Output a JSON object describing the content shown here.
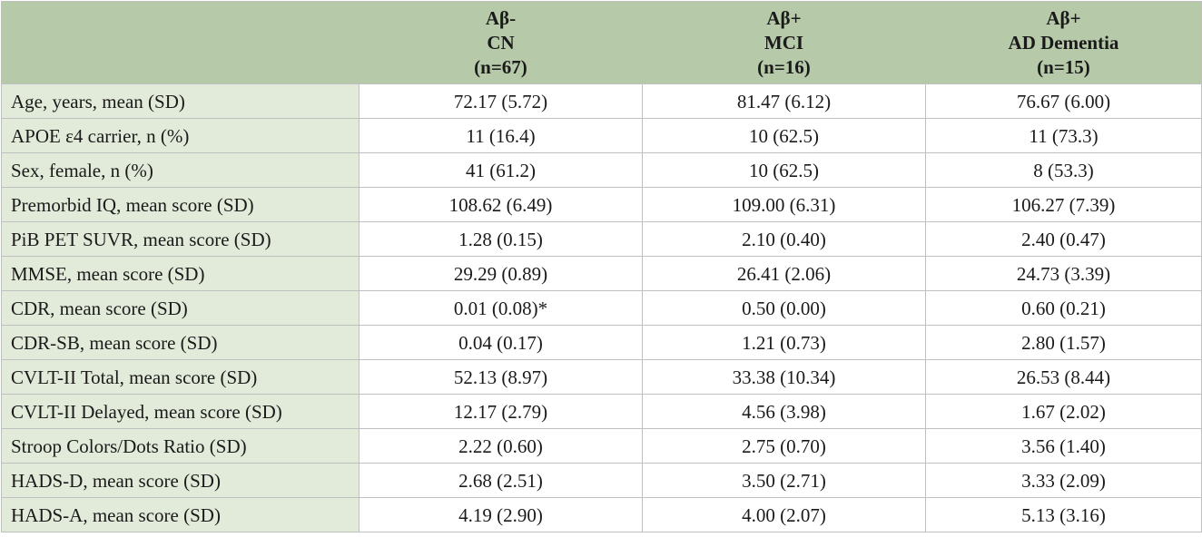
{
  "header": {
    "row_header": "",
    "columns": [
      {
        "line1": "Aβ-",
        "line2": "CN",
        "line3": "(n=67)"
      },
      {
        "line1": "Aβ+",
        "line2": "MCI",
        "line3": "(n=16)"
      },
      {
        "line1": "Aβ+",
        "line2": "AD Dementia",
        "line3": "(n=15)"
      }
    ]
  },
  "rows": [
    {
      "label": "Age, years, mean (SD)",
      "values": [
        "72.17 (5.72)",
        "81.47 (6.12)",
        "76.67 (6.00)"
      ]
    },
    {
      "label": "APOE ε4 carrier, n (%)",
      "values": [
        "11 (16.4)",
        "10 (62.5)",
        "11 (73.3)"
      ]
    },
    {
      "label": "Sex, female, n (%)",
      "values": [
        "41 (61.2)",
        "10 (62.5)",
        "8 (53.3)"
      ]
    },
    {
      "label": "Premorbid IQ, mean score (SD)",
      "values": [
        "108.62 (6.49)",
        "109.00 (6.31)",
        "106.27 (7.39)"
      ]
    },
    {
      "label": "PiB PET SUVR, mean score (SD)",
      "values": [
        "1.28 (0.15)",
        "2.10 (0.40)",
        "2.40 (0.47)"
      ]
    },
    {
      "label": "MMSE, mean score (SD)",
      "values": [
        "29.29 (0.89)",
        "26.41 (2.06)",
        "24.73 (3.39)"
      ]
    },
    {
      "label": "CDR, mean score (SD)",
      "values": [
        "0.01 (0.08)*",
        "0.50 (0.00)",
        "0.60 (0.21)"
      ]
    },
    {
      "label": "CDR-SB, mean score (SD)",
      "values": [
        "0.04 (0.17)",
        "1.21 (0.73)",
        "2.80 (1.57)"
      ]
    },
    {
      "label": "CVLT-II Total, mean score (SD)",
      "values": [
        "52.13 (8.97)",
        "33.38 (10.34)",
        "26.53 (8.44)"
      ]
    },
    {
      "label": "CVLT-II Delayed, mean score (SD)",
      "values": [
        "12.17 (2.79)",
        "4.56 (3.98)",
        "1.67 (2.02)"
      ]
    },
    {
      "label": "Stroop Colors/Dots Ratio (SD)",
      "values": [
        "2.22 (0.60)",
        "2.75 (0.70)",
        "3.56 (1.40)"
      ]
    },
    {
      "label": "HADS-D, mean score (SD)",
      "values": [
        "2.68 (2.51)",
        "3.50 (2.71)",
        "3.33 (2.09)"
      ]
    },
    {
      "label": "HADS-A, mean score (SD)",
      "values": [
        "4.19 (2.90)",
        "4.00 (2.07)",
        "5.13 (3.16)"
      ]
    }
  ],
  "colors": {
    "header_bg": "#b6c9a8",
    "label_bg": "#e2ebda",
    "value_bg": "#ffffff",
    "border": "#bfbfbf"
  }
}
